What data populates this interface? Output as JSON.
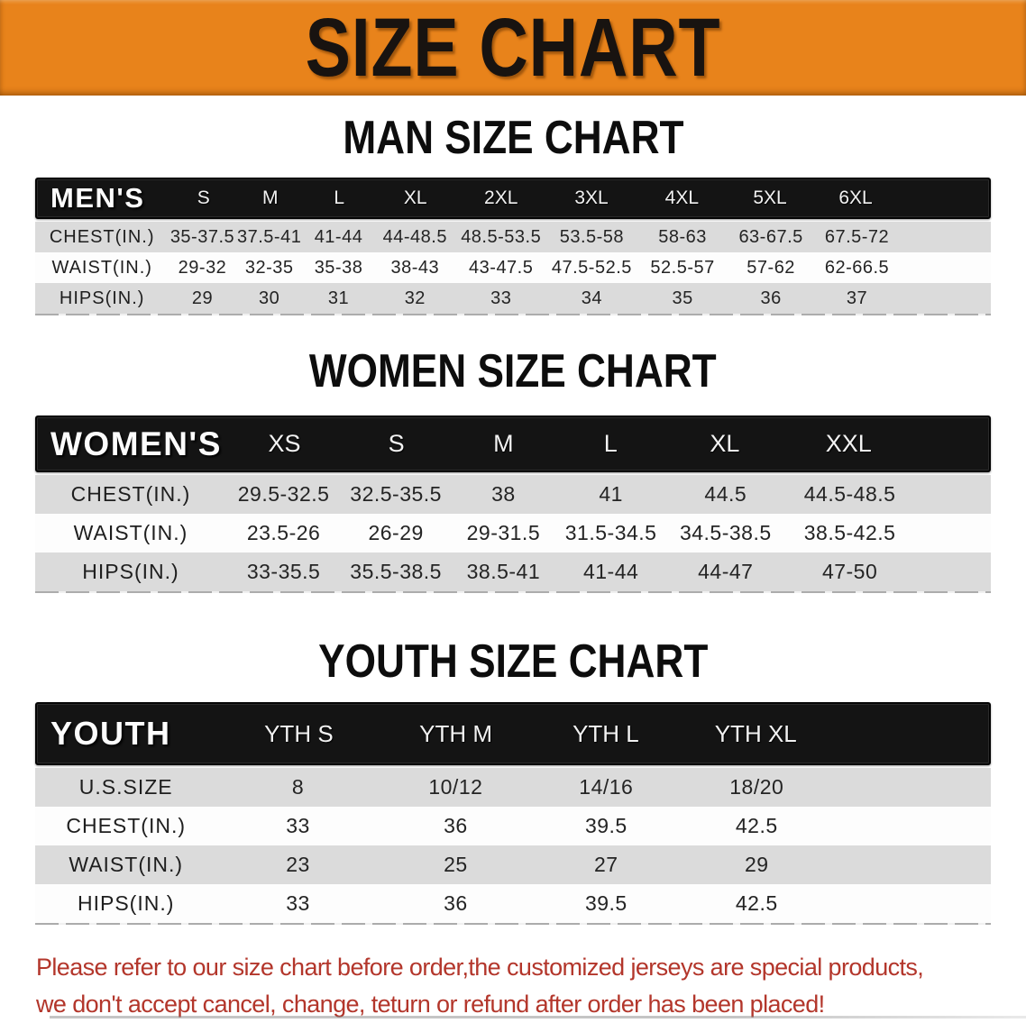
{
  "banner": {
    "title": "SIZE CHART"
  },
  "colors": {
    "banner_bg": "#E8831B",
    "banner_text": "#181310",
    "title_text": "#0D0D0D",
    "header_bar": "#141414",
    "row_gray": "#DBDBDB",
    "row_white": "#FDFDFD",
    "disclaimer": "#B3362B"
  },
  "sections": [
    {
      "id": "men",
      "title": "MAN SIZE CHART",
      "header_label": "MEN'S",
      "columns": [
        "S",
        "M",
        "L",
        "XL",
        "2XL",
        "3XL",
        "4XL",
        "5XL",
        "6XL"
      ],
      "rows": [
        {
          "label": "CHEST(IN.)",
          "values": [
            "35-37.5",
            "37.5-41",
            "41-44",
            "44-48.5",
            "48.5-53.5",
            "53.5-58",
            "58-63",
            "63-67.5",
            "67.5-72"
          ]
        },
        {
          "label": "WAIST(IN.)",
          "values": [
            "29-32",
            "32-35",
            "35-38",
            "38-43",
            "43-47.5",
            "47.5-52.5",
            "52.5-57",
            "57-62",
            "62-66.5"
          ]
        },
        {
          "label": "HIPS(IN.)",
          "values": [
            "29",
            "30",
            "31",
            "32",
            "33",
            "34",
            "35",
            "36",
            "37"
          ]
        }
      ]
    },
    {
      "id": "women",
      "title": "WOMEN SIZE CHART",
      "header_label": "WOMEN'S",
      "columns": [
        "XS",
        "S",
        "M",
        "L",
        "XL",
        "XXL"
      ],
      "rows": [
        {
          "label": "CHEST(IN.)",
          "values": [
            "29.5-32.5",
            "32.5-35.5",
            "38",
            "41",
            "44.5",
            "44.5-48.5"
          ]
        },
        {
          "label": "WAIST(IN.)",
          "values": [
            "23.5-26",
            "26-29",
            "29-31.5",
            "31.5-34.5",
            "34.5-38.5",
            "38.5-42.5"
          ]
        },
        {
          "label": "HIPS(IN.)",
          "values": [
            "33-35.5",
            "35.5-38.5",
            "38.5-41",
            "41-44",
            "44-47",
            "47-50"
          ]
        }
      ]
    },
    {
      "id": "youth",
      "title": "YOUTH SIZE CHART",
      "header_label": "YOUTH",
      "columns": [
        "YTH S",
        "YTH M",
        "YTH L",
        "YTH XL"
      ],
      "rows": [
        {
          "label": "U.S.SIZE",
          "values": [
            "8",
            "10/12",
            "14/16",
            "18/20"
          ]
        },
        {
          "label": "CHEST(IN.)",
          "values": [
            "33",
            "36",
            "39.5",
            "42.5"
          ]
        },
        {
          "label": "WAIST(IN.)",
          "values": [
            "23",
            "25",
            "27",
            "29"
          ]
        },
        {
          "label": "HIPS(IN.)",
          "values": [
            "33",
            "36",
            "39.5",
            "42.5"
          ]
        }
      ]
    }
  ],
  "disclaimer": {
    "line1": "Please refer to our size chart before order,the customized jerseys are special products,",
    "line2": "we don't accept cancel, change, teturn or refund after order has been placed!"
  }
}
